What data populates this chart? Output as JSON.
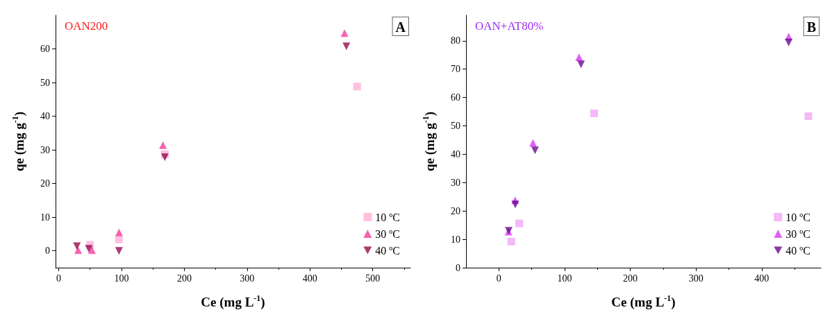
{
  "chart_data": [
    {
      "type": "scatter",
      "title": "OAN200",
      "xlabel": "Ce (mg L$^{-1}$)",
      "ylabel": "qe (mg g$^{-1}$)",
      "annotations": [
        "A"
      ],
      "xlim": [
        -5,
        560
      ],
      "xticks": [
        0,
        100,
        200,
        300,
        400,
        500
      ],
      "ylim": [
        -5,
        70
      ],
      "yticks": [
        0,
        10,
        20,
        30,
        40,
        50,
        60
      ],
      "grid": false,
      "legend": "bottom right",
      "series": [
        {
          "name": "10 ºC",
          "color": "#ffb0d8",
          "marker": "square",
          "x": [
            50,
            96,
            169,
            475
          ],
          "values": [
            1.8,
            3.4,
            28.7,
            48.8
          ]
        },
        {
          "name": "30 ºC",
          "color": "#f23c9e",
          "marker": "triangle",
          "x": [
            31,
            53,
            96,
            166,
            455
          ],
          "values": [
            0.2,
            0.2,
            5.5,
            31.4,
            64.7
          ]
        },
        {
          "name": "40 ºC",
          "color": "#9a0a50",
          "marker": "triangle-down",
          "x": [
            29,
            48,
            96,
            169,
            458
          ],
          "values": [
            1.4,
            0.6,
            0,
            27.8,
            60.8
          ]
        }
      ]
    },
    {
      "type": "scatter",
      "title": "OAN+AT80%",
      "xlabel": "Ce (mg L$^{-1}$)",
      "ylabel": "qe (mg g$^{-1}$)",
      "annotations": [
        "B"
      ],
      "xlim": [
        -50,
        490
      ],
      "xticks": [
        0,
        100,
        200,
        300,
        400
      ],
      "ylim": [
        0,
        89
      ],
      "yticks": [
        0,
        10,
        20,
        30,
        40,
        50,
        60,
        70,
        80
      ],
      "grid": false,
      "legend": "bottom right",
      "series": [
        {
          "name": "10 ºC",
          "color": "#f0a8f6",
          "marker": "square",
          "x": [
            19,
            31,
            145,
            471
          ],
          "values": [
            9.2,
            15.6,
            54.4,
            53.4
          ]
        },
        {
          "name": "30 ºC",
          "color": "#d63cf2",
          "marker": "triangle",
          "x": [
            14.6,
            24.8,
            52,
            122,
            441
          ],
          "values": [
            12.7,
            23.8,
            44,
            74.2,
            81.5
          ]
        },
        {
          "name": "40 ºC",
          "color": "#6a0a8e",
          "marker": "triangle-down",
          "x": [
            15,
            25,
            55,
            125,
            441
          ],
          "values": [
            13,
            22.3,
            41.4,
            71.7,
            79.4
          ]
        }
      ]
    }
  ]
}
